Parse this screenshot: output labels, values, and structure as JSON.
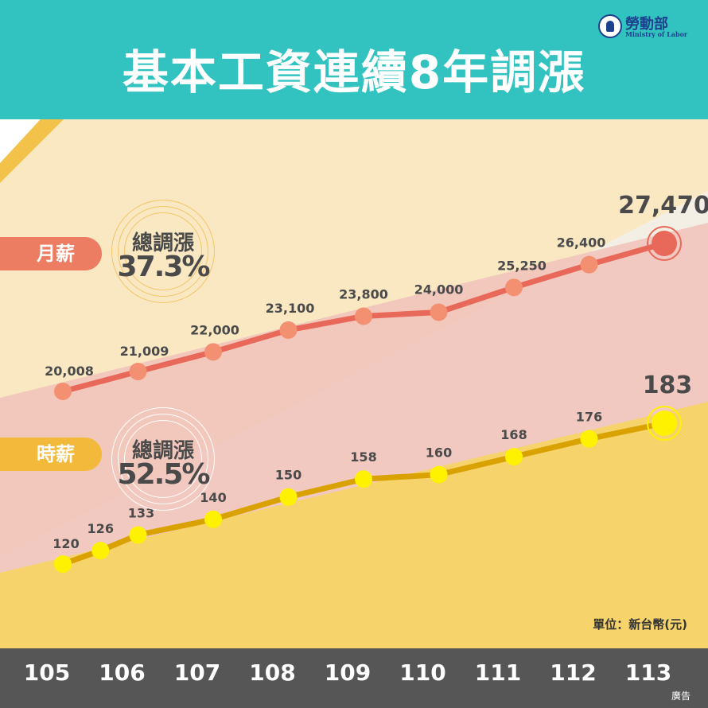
{
  "header": {
    "title": "基本工資連續8年調漲",
    "logo_name": "勞動部",
    "logo_sub": "Ministry of Labor"
  },
  "tags": {
    "monthly": "月薪",
    "hourly": "時薪"
  },
  "badges": {
    "monthly": {
      "label": "總調漲",
      "value": "37.3%"
    },
    "hourly": {
      "label": "總調漲",
      "value": "52.5%"
    }
  },
  "unit": "單位：新台幣(元)",
  "footer": {
    "ad": "廣告"
  },
  "colors": {
    "header": "#32c3c0",
    "monthly_line": "#e8695a",
    "monthly_dot": "#f39072",
    "monthly_highlight": "#e8695a",
    "hourly_line": "#d9a200",
    "hourly_dot": "#fff200",
    "axis_bar": "#565656"
  },
  "chart_data": {
    "type": "line",
    "categories": [
      "105",
      "106",
      "107",
      "108",
      "109",
      "110",
      "111",
      "112",
      "113"
    ],
    "series": [
      {
        "name": "月薪",
        "x": [
          "105",
          "106",
          "107",
          "108",
          "109",
          "110",
          "111",
          "112",
          "113"
        ],
        "values": [
          20008,
          21009,
          22000,
          23100,
          23800,
          24000,
          25250,
          26400,
          27470
        ],
        "labels": [
          "20,008",
          "21,009",
          "22,000",
          "23,100",
          "23,800",
          "24,000",
          "25,250",
          "26,400",
          "27,470"
        ]
      },
      {
        "name": "時薪",
        "x": [
          "105",
          "105.5",
          "106",
          "107",
          "108",
          "109",
          "110",
          "111",
          "112",
          "113"
        ],
        "values": [
          120,
          126,
          133,
          140,
          150,
          158,
          160,
          168,
          176,
          183
        ],
        "labels": [
          "120",
          "126",
          "133",
          "140",
          "150",
          "158",
          "160",
          "168",
          "176",
          "183"
        ]
      }
    ],
    "xlabel": "",
    "ylabel": "",
    "grid": false,
    "legend": "left"
  }
}
